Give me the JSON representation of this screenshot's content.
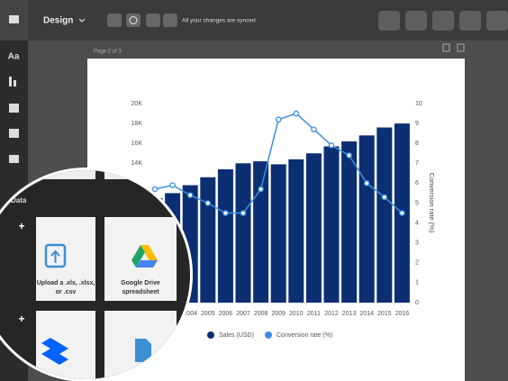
{
  "toolbar": {
    "menu": "Design",
    "status": "All your changes are synced"
  },
  "sidebar": {
    "text_icon": "Aa"
  },
  "page_label": "Page 2 of 3",
  "panel": {
    "section": "Data",
    "cards": [
      {
        "lines": [
          "Upload a .xls, .xlsx,",
          "or .csv"
        ]
      },
      {
        "lines": [
          "Google Drive",
          "spreadsheet"
        ]
      }
    ]
  },
  "chart_data": {
    "type": "bar_line",
    "categories": [
      null,
      null,
      "2004",
      "2005",
      "2006",
      "2007",
      "2008",
      "2009",
      "2010",
      "2011",
      "2012",
      "2013",
      "2014",
      "2015",
      "2016"
    ],
    "series": [
      {
        "name": "Sales (USD)",
        "type": "bar",
        "color": "#0b2f72",
        "values": [
          10500,
          11000,
          11800,
          12600,
          13400,
          14000,
          14200,
          13900,
          14400,
          15000,
          15700,
          16200,
          16800,
          17600,
          18000
        ]
      },
      {
        "name": "Conversion rate (%)",
        "type": "line",
        "axis": "y2",
        "color": "#3b8fe3",
        "values": [
          5.7,
          5.9,
          5.4,
          5.0,
          4.5,
          4.5,
          5.7,
          9.2,
          9.5,
          8.7,
          7.9,
          7.4,
          6.0,
          5.3,
          4.5
        ]
      }
    ],
    "ylim": [
      0,
      20000
    ],
    "yticks": [
      {
        "value": 14000,
        "label": "14K"
      },
      {
        "value": 16000,
        "label": "16K"
      },
      {
        "value": 18000,
        "label": "18K"
      },
      {
        "value": 20000,
        "label": "20K"
      }
    ],
    "y2lim": [
      0,
      10
    ],
    "y2ticks": [
      0,
      1,
      2,
      3,
      4,
      5,
      6,
      7,
      8,
      9,
      10
    ],
    "y2label": "Conversion rate (%)",
    "legend": "bottom"
  }
}
